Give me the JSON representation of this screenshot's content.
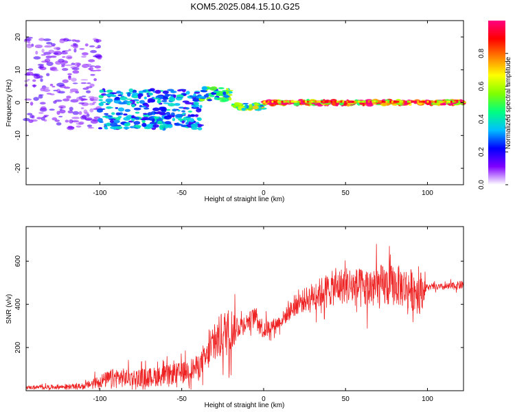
{
  "title": "KOM5.2025.084.15.10.G25",
  "chart_data": [
    {
      "type": "heatmap",
      "xlabel": "Height of straight line (km)",
      "ylabel": "Frequency (Hz)",
      "xlim": [
        -145,
        122
      ],
      "ylim": [
        -25,
        25
      ],
      "x_ticks": [
        -100,
        -50,
        0,
        50,
        100
      ],
      "y_ticks": [
        -20,
        -10,
        0,
        10,
        20
      ],
      "x_tick_labels": [
        "-100",
        "-50",
        "0",
        "50",
        "100"
      ],
      "y_tick_labels": [
        "-20",
        "-10",
        "0",
        "10",
        "20"
      ],
      "colorbar": {
        "label": "Normalized spectral amplitude",
        "range": [
          0,
          1
        ],
        "ticks": [
          0.0,
          0.2,
          0.4,
          0.6,
          0.8
        ],
        "tick_labels": [
          "0.0",
          "0.2",
          "0.4",
          "0.6",
          "0.8"
        ],
        "colormap": "rainbow",
        "colors": [
          "#ffffff",
          "#7f00ff",
          "#0000ff",
          "#00c0ff",
          "#00ff80",
          "#80ff00",
          "#ffff00",
          "#ff8000",
          "#ff0000",
          "#ff0080"
        ]
      },
      "trend_segments": [
        {
          "x": [
            -145,
            -100
          ],
          "freq_center": 6,
          "freq_spread": 28,
          "amplitude": 0.12
        },
        {
          "x": [
            -100,
            -38
          ],
          "freq_center": -2,
          "freq_spread": 12,
          "amplitude": 0.3
        },
        {
          "x": [
            -38,
            -20
          ],
          "freq_center": 2.5,
          "freq_spread": 4,
          "amplitude": 0.45
        },
        {
          "x": [
            -20,
            0
          ],
          "freq_center": -1.2,
          "freq_spread": 2,
          "amplitude": 0.55
        },
        {
          "x": [
            0,
            122
          ],
          "freq_center": 0,
          "freq_spread": 1.2,
          "amplitude": 0.9
        }
      ]
    },
    {
      "type": "line",
      "xlabel": "Height of straight line (km)",
      "ylabel": "SNR (v/v)",
      "xlim": [
        -145,
        122
      ],
      "ylim": [
        0,
        760
      ],
      "x_ticks": [
        -100,
        -50,
        0,
        50,
        100
      ],
      "y_ticks": [
        200,
        400,
        600
      ],
      "x_tick_labels": [
        "-100",
        "-50",
        "0",
        "50",
        "100"
      ],
      "y_tick_labels": [
        "200",
        "400",
        "600"
      ],
      "color": "#ee2222",
      "envelope": {
        "x": [
          -145,
          -110,
          -100,
          -90,
          -80,
          -70,
          -60,
          -50,
          -40,
          -35,
          -30,
          -25,
          -20,
          -15,
          -10,
          -5,
          0,
          5,
          10,
          20,
          30,
          40,
          50,
          60,
          70,
          80,
          90,
          95,
          100,
          110,
          122
        ],
        "mean": [
          15,
          20,
          45,
          60,
          60,
          62,
          70,
          85,
          110,
          150,
          220,
          260,
          280,
          300,
          320,
          350,
          280,
          300,
          320,
          400,
          440,
          470,
          490,
          470,
          480,
          490,
          470,
          460,
          480,
          480,
          490
        ],
        "spread": [
          10,
          15,
          40,
          60,
          50,
          55,
          60,
          60,
          70,
          80,
          120,
          140,
          140,
          60,
          50,
          50,
          60,
          40,
          40,
          60,
          80,
          100,
          110,
          120,
          130,
          120,
          120,
          140,
          15,
          20,
          25
        ]
      }
    }
  ]
}
